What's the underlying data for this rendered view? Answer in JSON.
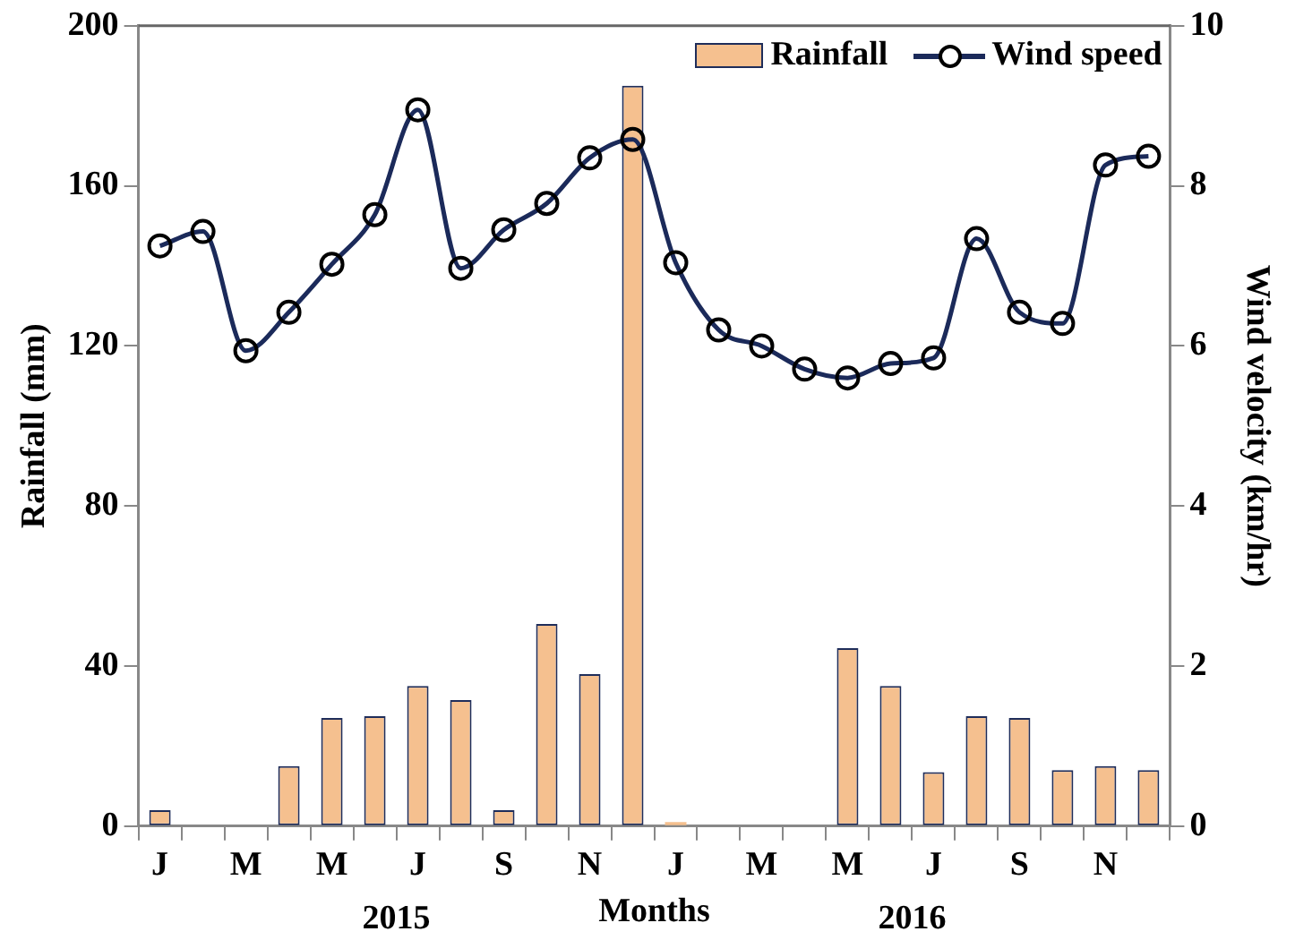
{
  "chart_data": {
    "type": "bar",
    "xlabel": "Months",
    "ylabel": "Rainfall (mm)",
    "y2label": "Wind velocity (km/hr)",
    "categories": [
      "J",
      null,
      "M",
      null,
      "M",
      null,
      "J",
      null,
      "S",
      null,
      "N",
      null,
      "J",
      null,
      "M",
      null,
      "M",
      null,
      "J",
      null,
      "S",
      null,
      "N",
      null
    ],
    "series": [
      {
        "name": "Rainfall",
        "color": "#f5c08f",
        "values": [
          4,
          0,
          0,
          15,
          27,
          27.5,
          35,
          31.5,
          4,
          50.5,
          38,
          185,
          1,
          0,
          0,
          0,
          44.5,
          35,
          13.5,
          27.5,
          27,
          14,
          15,
          14
        ]
      },
      {
        "name": "Wind speed",
        "type": "line",
        "axis": "y2",
        "color": "#1b2a5a",
        "values": [
          7.25,
          7.43,
          5.94,
          6.42,
          7.02,
          7.64,
          8.95,
          6.97,
          7.45,
          7.78,
          8.35,
          8.58,
          7.04,
          6.2,
          6.0,
          5.71,
          5.6,
          5.78,
          5.85,
          7.34,
          6.42,
          6.28,
          8.26,
          8.37
        ]
      }
    ],
    "ylim": [
      0,
      200
    ],
    "yticks": [
      0,
      40,
      80,
      120,
      160,
      200
    ],
    "y2lim": [
      0,
      10
    ],
    "y2ticks": [
      0,
      2,
      4,
      6,
      8,
      10
    ],
    "legend": "top right",
    "marker": "circle",
    "line_style": "solid",
    "grid": false,
    "annotations": [
      "2015",
      "2016"
    ]
  }
}
